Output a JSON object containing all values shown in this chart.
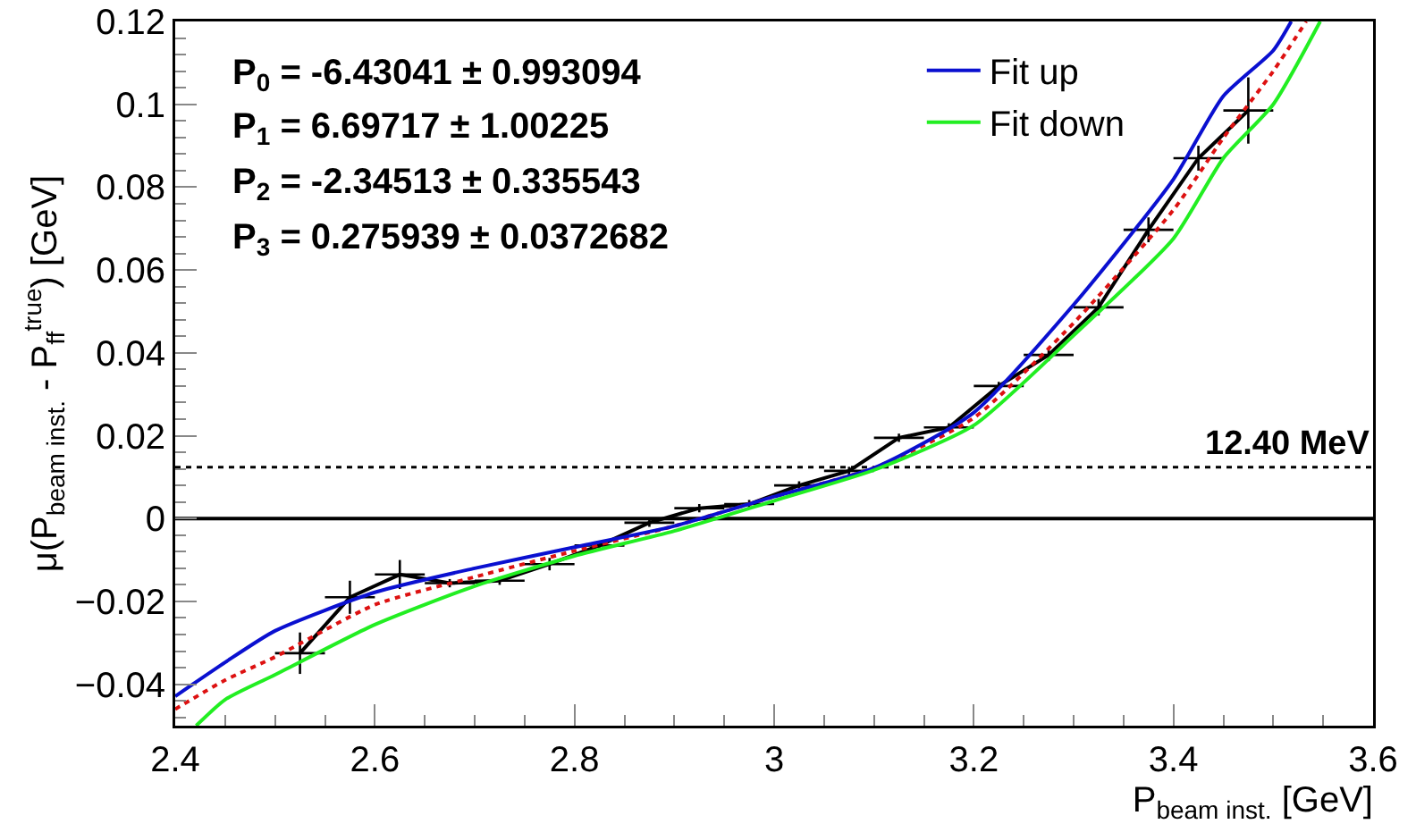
{
  "chart_data": {
    "type": "line",
    "xlabel": "P$_{beam inst.}$ [GeV]",
    "ylabel": "μ(P$_{beam inst.}$ - P$_{ff}$$^{true}$) [GeV]",
    "xlim": [
      2.4,
      3.6
    ],
    "xticks": [
      2.4,
      2.6,
      2.8,
      3,
      3.2,
      3.4,
      3.6
    ],
    "ylim": [
      -0.05,
      0.12
    ],
    "yticks": [
      {
        "value": -0.04,
        "label": "−0.04"
      },
      {
        "value": -0.02,
        "label": "−0.02"
      },
      0,
      0.02,
      0.04,
      0.06,
      0.08,
      0.1,
      0.12
    ],
    "grid": false,
    "legend": "top right",
    "marker": "none",
    "series": [
      {
        "color": "#000000",
        "line_style": "solid",
        "x": [
          2.525,
          2.575,
          2.625,
          2.675,
          2.725,
          2.775,
          2.825,
          2.875,
          2.925,
          2.975,
          3.025,
          3.075,
          3.125,
          3.175,
          3.225,
          3.275,
          3.325,
          3.375,
          3.425,
          3.475
        ],
        "values": [
          -0.0325,
          -0.019,
          -0.0135,
          -0.0156,
          -0.015,
          -0.011,
          -0.0065,
          -0.001,
          0.0025,
          0.0035,
          0.008,
          0.0115,
          0.0195,
          0.022,
          0.032,
          0.0395,
          0.051,
          0.0697,
          0.087,
          0.0985
        ],
        "errors": [
          0.005,
          0.004,
          0.0035,
          0.001,
          0.001,
          0.0015,
          0.001,
          0.001,
          0.001,
          0.001,
          0.001,
          0.001,
          0.001,
          0.001,
          0.001,
          0.0015,
          0.002,
          0.003,
          0.003,
          0.008
        ],
        "xerrors": [
          0.025,
          0.025,
          0.025,
          0.025,
          0.025,
          0.025,
          0.025,
          0.025,
          0.025,
          0.025,
          0.025,
          0.025,
          0.025,
          0.025,
          0.025,
          0.025,
          0.025,
          0.025,
          0.025,
          0.025
        ]
      },
      {
        "color": "#dd1111",
        "line_style": "dotted",
        "x": [
          2.4,
          2.45,
          2.5,
          2.6,
          2.7,
          2.8,
          2.9,
          3.0,
          3.1,
          3.2,
          3.3,
          3.4,
          3.45,
          3.5,
          3.533
        ],
        "values": [
          -0.046,
          -0.039,
          -0.0334,
          -0.0208,
          -0.0141,
          -0.0078,
          -0.0018,
          0.0053,
          0.0122,
          0.0243,
          0.0472,
          0.0745,
          0.0919,
          0.108,
          0.12
        ]
      },
      {
        "name": "Fit up",
        "color": "#0a10d0",
        "line_style": "solid",
        "x": [
          2.4,
          2.45,
          2.5,
          2.6,
          2.7,
          2.8,
          2.9,
          3.0,
          3.1,
          3.2,
          3.3,
          3.4,
          3.45,
          3.5,
          3.518
        ],
        "values": [
          -0.0429,
          -0.0347,
          -0.0271,
          -0.0178,
          -0.012,
          -0.0069,
          -0.0018,
          0.0053,
          0.0122,
          0.0256,
          0.0516,
          0.0819,
          0.102,
          0.113,
          0.12
        ]
      },
      {
        "name": "Fit down",
        "color": "#22ee22",
        "line_style": "solid",
        "x": [
          2.421,
          2.45,
          2.5,
          2.6,
          2.7,
          2.8,
          2.9,
          3.0,
          3.1,
          3.2,
          3.3,
          3.4,
          3.45,
          3.5,
          3.547
        ],
        "values": [
          -0.05,
          -0.0437,
          -0.0377,
          -0.0256,
          -0.0163,
          -0.009,
          -0.003,
          0.0043,
          0.0117,
          0.0225,
          0.0442,
          0.0676,
          0.087,
          0.1,
          0.12
        ]
      }
    ],
    "ref_lines": [
      {
        "axis": "y",
        "value": 0,
        "color": "#000000",
        "line_style": "solid"
      },
      {
        "axis": "y",
        "value": 0.0124,
        "label": "12.40 MeV",
        "color": "#000000",
        "line_style": "dotted"
      }
    ],
    "annotations": [
      "P$_{0}$ = -6.43041 ± 0.993094",
      "P$_{1}$ = 6.69717 ± 1.00225",
      "P$_{2}$ = -2.34513 ± 0.335543",
      "P$_{3}$ = 0.275939 ± 0.0372682"
    ]
  }
}
